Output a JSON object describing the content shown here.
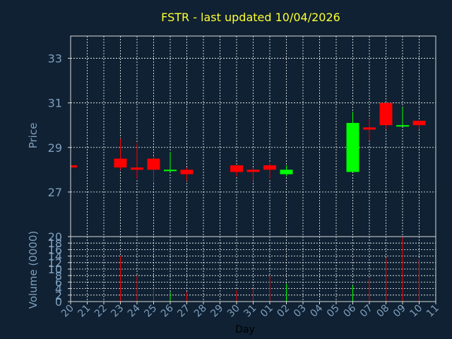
{
  "title": "FSTR - last updated 10/04/2026",
  "colors": {
    "up": "#00ff00",
    "down": "#ff0000",
    "background": "#0f2132",
    "text": "#7f9fbf",
    "title": "#ffff33"
  },
  "chart_data": [
    {
      "type": "candlestick",
      "ylabel": "Price",
      "ylim": [
        25.0,
        34.0
      ],
      "yticks": [
        "27",
        "29",
        "31",
        "33"
      ],
      "grid": true,
      "categories": [
        "20",
        "21",
        "22",
        "23",
        "24",
        "25",
        "26",
        "27",
        "28",
        "29",
        "30",
        "31",
        "01",
        "02",
        "03",
        "04",
        "05",
        "06",
        "07",
        "08",
        "09",
        "10",
        "11"
      ],
      "candles": [
        {
          "day": "20",
          "open": 28.2,
          "high": 28.2,
          "low": 28.1,
          "close": 28.1
        },
        {
          "day": "23",
          "open": 28.5,
          "high": 29.4,
          "low": 28.0,
          "close": 28.1
        },
        {
          "day": "24",
          "open": 28.1,
          "high": 29.2,
          "low": 27.6,
          "close": 28.0
        },
        {
          "day": "25",
          "open": 28.5,
          "high": 28.6,
          "low": 27.4,
          "close": 28.0
        },
        {
          "day": "26",
          "open": 28.0,
          "high": 28.8,
          "low": 27.9,
          "close": 28.0
        },
        {
          "day": "27",
          "open": 28.0,
          "high": 28.1,
          "low": 27.5,
          "close": 27.8
        },
        {
          "day": "30",
          "open": 28.2,
          "high": 28.2,
          "low": 27.7,
          "close": 27.9
        },
        {
          "day": "31",
          "open": 28.0,
          "high": 28.1,
          "low": 27.5,
          "close": 27.9
        },
        {
          "day": "01",
          "open": 28.2,
          "high": 28.3,
          "low": 27.6,
          "close": 28.0
        },
        {
          "day": "02",
          "open": 27.8,
          "high": 28.2,
          "low": 27.7,
          "close": 28.0
        },
        {
          "day": "06",
          "open": 27.9,
          "high": 30.6,
          "low": 27.9,
          "close": 30.1
        },
        {
          "day": "07",
          "open": 29.9,
          "high": 30.3,
          "low": 29.3,
          "close": 29.8
        },
        {
          "day": "08",
          "open": 31.0,
          "high": 31.0,
          "low": 29.8,
          "close": 30.0
        },
        {
          "day": "09",
          "open": 30.0,
          "high": 30.8,
          "low": 30.0,
          "close": 30.0
        },
        {
          "day": "10",
          "open": 30.2,
          "high": 30.2,
          "low": 29.8,
          "close": 30.0
        }
      ]
    },
    {
      "type": "bar",
      "ylabel": "Volume (0000)",
      "xlabel": "Day",
      "ylim": [
        0,
        20
      ],
      "yticks": [
        "0",
        "2",
        "4",
        "6",
        "8",
        "10",
        "12",
        "14",
        "16",
        "18",
        "20"
      ],
      "grid": true,
      "bars": [
        {
          "day": "20",
          "value": 0.2,
          "dir": "down"
        },
        {
          "day": "23",
          "value": 14.0,
          "dir": "down"
        },
        {
          "day": "24",
          "value": 8.0,
          "dir": "down"
        },
        {
          "day": "25",
          "value": 4.0,
          "dir": "down"
        },
        {
          "day": "26",
          "value": 3.0,
          "dir": "up"
        },
        {
          "day": "27",
          "value": 3.0,
          "dir": "down"
        },
        {
          "day": "30",
          "value": 3.5,
          "dir": "down"
        },
        {
          "day": "31",
          "value": 4.0,
          "dir": "down"
        },
        {
          "day": "01",
          "value": 8.0,
          "dir": "down"
        },
        {
          "day": "02",
          "value": 5.5,
          "dir": "up"
        },
        {
          "day": "06",
          "value": 5.0,
          "dir": "up"
        },
        {
          "day": "07",
          "value": 7.0,
          "dir": "down"
        },
        {
          "day": "08",
          "value": 13.5,
          "dir": "down"
        },
        {
          "day": "09",
          "value": 20.0,
          "dir": "down"
        },
        {
          "day": "10",
          "value": 13.0,
          "dir": "down"
        }
      ]
    }
  ]
}
